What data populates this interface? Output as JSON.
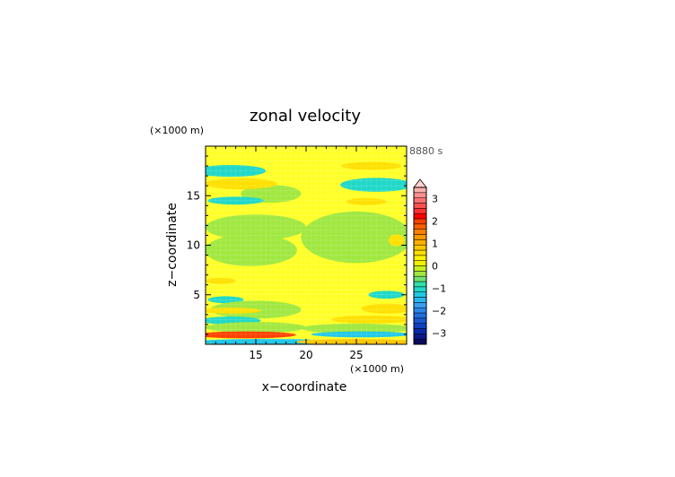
{
  "chart_data": {
    "type": "heatmap",
    "title": "zonal velocity",
    "xlabel": "x−coordinate",
    "ylabel": "z−coordinate",
    "x_unit": "(×1000 m)",
    "y_unit": "(×1000 m)",
    "time_label": "8880 s",
    "xlim": [
      10,
      30
    ],
    "ylim": [
      0,
      20
    ],
    "x_ticks": [
      15,
      20,
      25
    ],
    "y_ticks": [
      5,
      10,
      15
    ],
    "colorbar": {
      "min": -3.5,
      "max": 3.5,
      "step": 0.25,
      "ticks": [
        3,
        2,
        1,
        0,
        -1,
        -2,
        -3
      ],
      "extend": "max",
      "colors": [
        "#0a0a60",
        "#0a1a8a",
        "#0a2aa8",
        "#1040c0",
        "#1858d0",
        "#1e6ee0",
        "#2a86ea",
        "#3aa0f0",
        "#28b8f0",
        "#20c8e8",
        "#20d8c8",
        "#30e0a8",
        "#70e070",
        "#a0e840",
        "#c8f020",
        "#f0f000",
        "#fff200",
        "#ffe000",
        "#ffc800",
        "#ffb000",
        "#ff9800",
        "#ff8000",
        "#ff6000",
        "#ff4000",
        "#ff0000",
        "#ff3030",
        "#ff5050",
        "#ff7070",
        "#ff9090",
        "#ffb0b0"
      ],
      "top_color": "#ffd0d0"
    },
    "background_color": "#ffff28",
    "blobs": [
      {
        "x": 12.5,
        "y": 17.5,
        "rx": 3.5,
        "ry": 0.6,
        "value": -0.8
      },
      {
        "x": 16.5,
        "y": 15.2,
        "rx": 3.0,
        "ry": 0.9,
        "value": -0.1
      },
      {
        "x": 13.5,
        "y": 16.2,
        "rx": 3.6,
        "ry": 0.55,
        "value": 0.9
      },
      {
        "x": 13.0,
        "y": 14.5,
        "rx": 2.8,
        "ry": 0.4,
        "value": -0.9
      },
      {
        "x": 27.0,
        "y": 16.1,
        "rx": 3.6,
        "ry": 0.7,
        "value": -0.8
      },
      {
        "x": 26.5,
        "y": 18.0,
        "rx": 3.0,
        "ry": 0.4,
        "value": 0.8
      },
      {
        "x": 26.0,
        "y": 14.4,
        "rx": 2.0,
        "ry": 0.35,
        "value": 0.9
      },
      {
        "x": 15.0,
        "y": 11.8,
        "rx": 5.0,
        "ry": 1.3,
        "value": -0.15
      },
      {
        "x": 14.5,
        "y": 9.5,
        "rx": 4.6,
        "ry": 1.6,
        "value": -0.15
      },
      {
        "x": 25.0,
        "y": 10.8,
        "rx": 5.5,
        "ry": 2.6,
        "value": -0.15
      },
      {
        "x": 29.0,
        "y": 10.5,
        "rx": 0.8,
        "ry": 0.6,
        "value": 0.9
      },
      {
        "x": 11.5,
        "y": 6.4,
        "rx": 1.5,
        "ry": 0.3,
        "value": 0.9
      },
      {
        "x": 12.0,
        "y": 4.5,
        "rx": 1.8,
        "ry": 0.35,
        "value": -0.9
      },
      {
        "x": 28.0,
        "y": 5.0,
        "rx": 1.8,
        "ry": 0.4,
        "value": -0.9
      },
      {
        "x": 15.0,
        "y": 3.5,
        "rx": 4.5,
        "ry": 0.9,
        "value": -0.15
      },
      {
        "x": 12.5,
        "y": 3.4,
        "rx": 3.0,
        "ry": 0.3,
        "value": 0.9
      },
      {
        "x": 28.0,
        "y": 3.6,
        "rx": 2.5,
        "ry": 0.5,
        "value": 0.9
      },
      {
        "x": 12.5,
        "y": 2.4,
        "rx": 3.0,
        "ry": 0.4,
        "value": -0.9
      },
      {
        "x": 26.5,
        "y": 2.5,
        "rx": 4.0,
        "ry": 0.4,
        "value": 0.9
      },
      {
        "x": 15.0,
        "y": 1.7,
        "rx": 5.0,
        "ry": 0.55,
        "value": -0.15
      },
      {
        "x": 25.0,
        "y": 1.6,
        "rx": 5.5,
        "ry": 0.5,
        "value": -0.15
      },
      {
        "x": 14.0,
        "y": 0.95,
        "rx": 5.0,
        "ry": 0.35,
        "value": 2.4
      },
      {
        "x": 25.5,
        "y": 1.0,
        "rx": 5.0,
        "ry": 0.3,
        "value": -1.1
      },
      {
        "x": 16.0,
        "y": 0.25,
        "rx": 7.0,
        "ry": 0.3,
        "value": -1.2
      },
      {
        "x": 25.0,
        "y": 0.25,
        "rx": 6.0,
        "ry": 0.3,
        "value": 1.1
      }
    ]
  }
}
